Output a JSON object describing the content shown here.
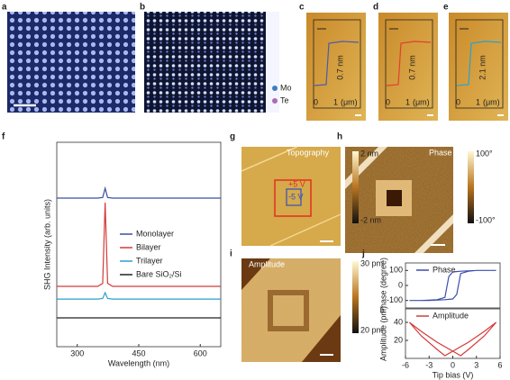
{
  "panel_labels": [
    "a",
    "b",
    "c",
    "d",
    "e",
    "f",
    "g",
    "h",
    "i",
    "j"
  ],
  "b": {
    "legend": [
      "Mo",
      "Te"
    ]
  },
  "c": {
    "height": "0.7 nm",
    "xticks": [
      "0",
      "1"
    ],
    "unit": "(μm)"
  },
  "d": {
    "height": "0.7 nm",
    "xticks": [
      "0",
      "1"
    ],
    "unit": "(μm)"
  },
  "e": {
    "height": "2.1 nm",
    "xticks": [
      "0",
      "1"
    ],
    "unit": "(μm)"
  },
  "g": {
    "title": "Topography",
    "plus": "+5 V",
    "minus": "-5 V",
    "cbar": [
      "2 nm",
      "-2 nm"
    ]
  },
  "h": {
    "title": "Phase",
    "cbar": [
      "100°",
      "-100°"
    ]
  },
  "i": {
    "title": "Amplitude",
    "cbar": [
      "30 pm",
      "20 pm"
    ]
  },
  "chart_data": [
    {
      "type": "line",
      "xlabel": "Wavelength (nm)",
      "ylabel": "SHG Intensity (arb. units)",
      "x": [
        250,
        350,
        362,
        368,
        374,
        386,
        650
      ],
      "xlim": [
        250,
        650
      ],
      "xticks": [
        300,
        450,
        600
      ],
      "ylim": [
        0,
        10
      ],
      "series": [
        {
          "name": "Monolayer",
          "color": "#3a4fa0",
          "values": [
            7.27,
            7.27,
            7.3,
            7.75,
            7.3,
            7.27,
            7.27
          ]
        },
        {
          "name": "Bilayer",
          "color": "#d43a3a",
          "values": [
            2.95,
            2.95,
            3.1,
            7.05,
            3.1,
            2.95,
            2.95
          ]
        },
        {
          "name": "Trilayer",
          "color": "#2a9fd0",
          "values": [
            2.33,
            2.33,
            2.36,
            2.64,
            2.36,
            2.33,
            2.33
          ]
        },
        {
          "name": "Bare SiO₂/Si",
          "color": "#222222",
          "values": [
            1.41,
            1.41,
            1.41,
            1.41,
            1.41,
            1.41,
            1.41
          ]
        }
      ]
    },
    {
      "type": "line",
      "ylabel": "Phase (degree)",
      "x": [
        -5.5,
        -3,
        -1,
        0,
        0.5,
        1,
        2,
        3,
        5.5,
        3,
        1,
        0,
        -0.5,
        -1,
        -2,
        -4,
        -5.5
      ],
      "xlim": [
        -6,
        6
      ],
      "ylim": [
        -150,
        150
      ],
      "yticks": [
        100,
        0,
        -100
      ],
      "series": [
        {
          "name": "Phase",
          "color": "#3b4cb0",
          "values": [
            -100,
            -100,
            -95,
            -90,
            -60,
            80,
            95,
            100,
            100,
            100,
            95,
            90,
            60,
            -80,
            -95,
            -100,
            -100
          ]
        }
      ]
    },
    {
      "type": "line",
      "ylabel": "Amplitude (pm)",
      "xlabel": "Tip bias (V)",
      "x": [
        -5.5,
        -4,
        -2,
        0,
        1,
        2,
        4,
        5.5,
        4,
        2,
        0,
        -1,
        -2,
        -4,
        -5.5
      ],
      "xlim": [
        -6,
        6
      ],
      "xticks": [
        -6,
        -3,
        0,
        3,
        6
      ],
      "ylim": [
        0,
        55
      ],
      "yticks": [
        40,
        20
      ],
      "series": [
        {
          "name": "Amplitude",
          "color": "#d43a3a",
          "values": [
            40,
            30,
            18,
            8,
            3,
            10,
            25,
            40,
            30,
            18,
            8,
            3,
            10,
            25,
            40
          ]
        }
      ]
    }
  ]
}
